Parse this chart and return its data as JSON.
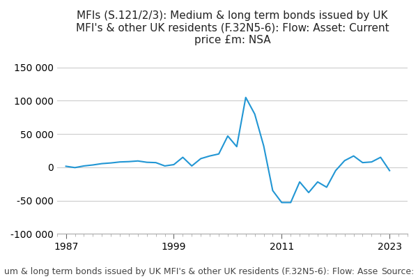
{
  "title": "MFIs (S.121/2/3): Medium & long term bonds issued by UK\nMFI's & other UK residents (F.32N5-6): Flow: Asset: Current\nprice £m: NSA",
  "line_color": "#2196d4",
  "background_color": "#ffffff",
  "grid_color": "#cccccc",
  "footer_text": "um & long term bonds issued by UK MFI's & other UK residents (F.32N5-6): Flow: Asse",
  "source_text": "Source:",
  "xlim": [
    1986,
    2025
  ],
  "ylim": [
    -100000,
    175000
  ],
  "yticks": [
    -100000,
    -50000,
    0,
    50000,
    100000,
    150000
  ],
  "ytick_labels": [
    "-100 000",
    "-50 000",
    "0",
    "50 000",
    "100 000",
    "150 000"
  ],
  "xticks": [
    1987,
    1999,
    2011,
    2023
  ],
  "years": [
    1987,
    1988,
    1989,
    1990,
    1991,
    1992,
    1993,
    1994,
    1995,
    1996,
    1997,
    1998,
    1999,
    2000,
    2001,
    2002,
    2003,
    2004,
    2005,
    2006,
    2007,
    2008,
    2009,
    2010,
    2011,
    2012,
    2013,
    2014,
    2015,
    2016,
    2017,
    2018,
    2019,
    2020,
    2021,
    2022,
    2023
  ],
  "values": [
    1500,
    -500,
    2000,
    3500,
    5500,
    6500,
    8000,
    8500,
    9500,
    7500,
    7000,
    2000,
    4000,
    15000,
    2000,
    13000,
    17000,
    20000,
    47000,
    31000,
    105000,
    80000,
    32000,
    -35000,
    -53000,
    -53000,
    -22000,
    -38000,
    -22000,
    -30000,
    -5000,
    10000,
    17000,
    7000,
    8000,
    15000,
    -5000
  ],
  "title_fontsize": 11,
  "tick_fontsize": 10,
  "footer_fontsize": 9
}
